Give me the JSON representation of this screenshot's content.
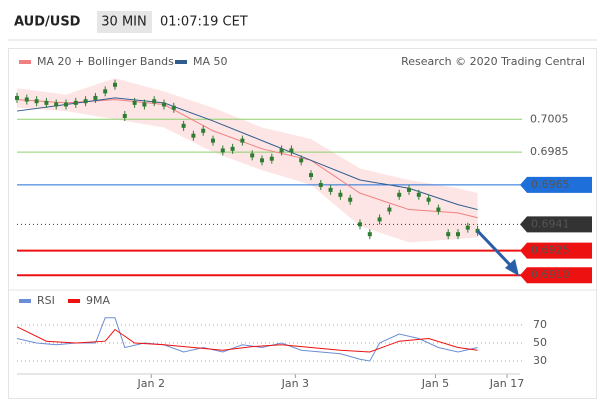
{
  "header": {
    "symbol": "AUD/USD",
    "interval": "30 MIN",
    "time": "01:07:19 CET"
  },
  "chart_data": [
    {
      "type": "price",
      "credit": "Research © 2020 Trading Central",
      "xlim": [
        0,
        50
      ],
      "xticks": [
        {
          "value": 13.7,
          "label": "Jan 2"
        },
        {
          "value": 28.4,
          "label": "Jan 3"
        },
        {
          "value": 42.7,
          "label": "Jan 5"
        },
        {
          "value": 50,
          "label": "Jan 17"
        }
      ],
      "ylim": [
        0.6901,
        0.705
      ],
      "price": {
        "color": "#2e7d32",
        "values": [
          0.7018,
          0.7017,
          0.7016,
          0.7015,
          0.7014,
          0.7014,
          0.7015,
          0.7016,
          0.7018,
          0.7022,
          0.7026,
          0.7007,
          0.7015,
          0.7014,
          0.7016,
          0.7014,
          0.7012,
          0.7001,
          0.6995,
          0.6998,
          0.6992,
          0.6986,
          0.6987,
          0.6992,
          0.6983,
          0.698,
          0.6981,
          0.6986,
          0.6986,
          0.698,
          0.6971,
          0.6965,
          0.6962,
          0.6959,
          0.6956,
          0.6941,
          0.6935,
          0.6944,
          0.695,
          0.6959,
          0.6962,
          0.6959,
          0.6956,
          0.695,
          0.6935,
          0.6935,
          0.6939,
          0.6937
        ]
      },
      "series": [
        {
          "name": "MA 20 + Bollinger Bands",
          "color": "#f08080",
          "x": [
            0,
            5,
            10,
            15,
            20,
            25,
            30,
            35,
            40,
            45,
            47
          ],
          "values": [
            0.7017,
            0.7015,
            0.7017,
            0.7014,
            0.6998,
            0.6987,
            0.698,
            0.696,
            0.695,
            0.6948,
            0.6945
          ],
          "upper": [
            0.7024,
            0.702,
            0.703,
            0.7022,
            0.7012,
            0.7,
            0.6993,
            0.6975,
            0.6968,
            0.6963,
            0.696
          ],
          "lower": [
            0.7012,
            0.701,
            0.7005,
            0.7,
            0.6985,
            0.6974,
            0.6965,
            0.694,
            0.693,
            0.6932,
            0.6933
          ]
        },
        {
          "name": "MA 50",
          "color": "#2f5d8f",
          "x": [
            0,
            5,
            10,
            15,
            20,
            25,
            30,
            35,
            40,
            45,
            47
          ],
          "values": [
            0.701,
            0.7014,
            0.7018,
            0.7015,
            0.7004,
            0.6992,
            0.698,
            0.6968,
            0.6963,
            0.6953,
            0.695
          ]
        }
      ],
      "levels": [
        {
          "value": 0.7005,
          "label": "0.7005",
          "color": "#8fd16f",
          "style": "text"
        },
        {
          "value": 0.6985,
          "label": "0.6985",
          "color": "#8fd16f",
          "style": "text"
        },
        {
          "value": 0.6965,
          "label": "0.6965",
          "color": "#1e6fd9",
          "style": "box"
        },
        {
          "value": 0.6941,
          "label": "0.6941",
          "color": "#333333",
          "style": "dotted"
        },
        {
          "value": 0.6925,
          "label": "0.6925",
          "color": "#ee1111",
          "style": "box"
        },
        {
          "value": 0.691,
          "label": "0.6910",
          "color": "#ee1111",
          "style": "box"
        }
      ]
    },
    {
      "type": "rsi",
      "ylim": [
        20,
        80
      ],
      "yticks": [
        70,
        50,
        30
      ],
      "series": [
        {
          "name": "RSI",
          "color": "#6b8fd6",
          "x": [
            0,
            2,
            4,
            6,
            8,
            9,
            10,
            11,
            13,
            15,
            17,
            19,
            21,
            23,
            25,
            27,
            29,
            31,
            33,
            35,
            36,
            37,
            39,
            41,
            43,
            45,
            47
          ],
          "values": [
            55,
            50,
            48,
            50,
            50,
            78,
            78,
            45,
            50,
            48,
            40,
            45,
            40,
            48,
            45,
            50,
            42,
            40,
            38,
            32,
            30,
            50,
            60,
            55,
            45,
            40,
            45
          ]
        },
        {
          "name": "9MA",
          "color": "#ee1111",
          "x": [
            0,
            3,
            6,
            9,
            10,
            12,
            15,
            18,
            21,
            24,
            27,
            30,
            33,
            36,
            39,
            42,
            45,
            47
          ],
          "values": [
            68,
            52,
            50,
            52,
            65,
            50,
            48,
            45,
            42,
            46,
            48,
            45,
            42,
            40,
            52,
            55,
            45,
            42
          ]
        }
      ]
    }
  ]
}
